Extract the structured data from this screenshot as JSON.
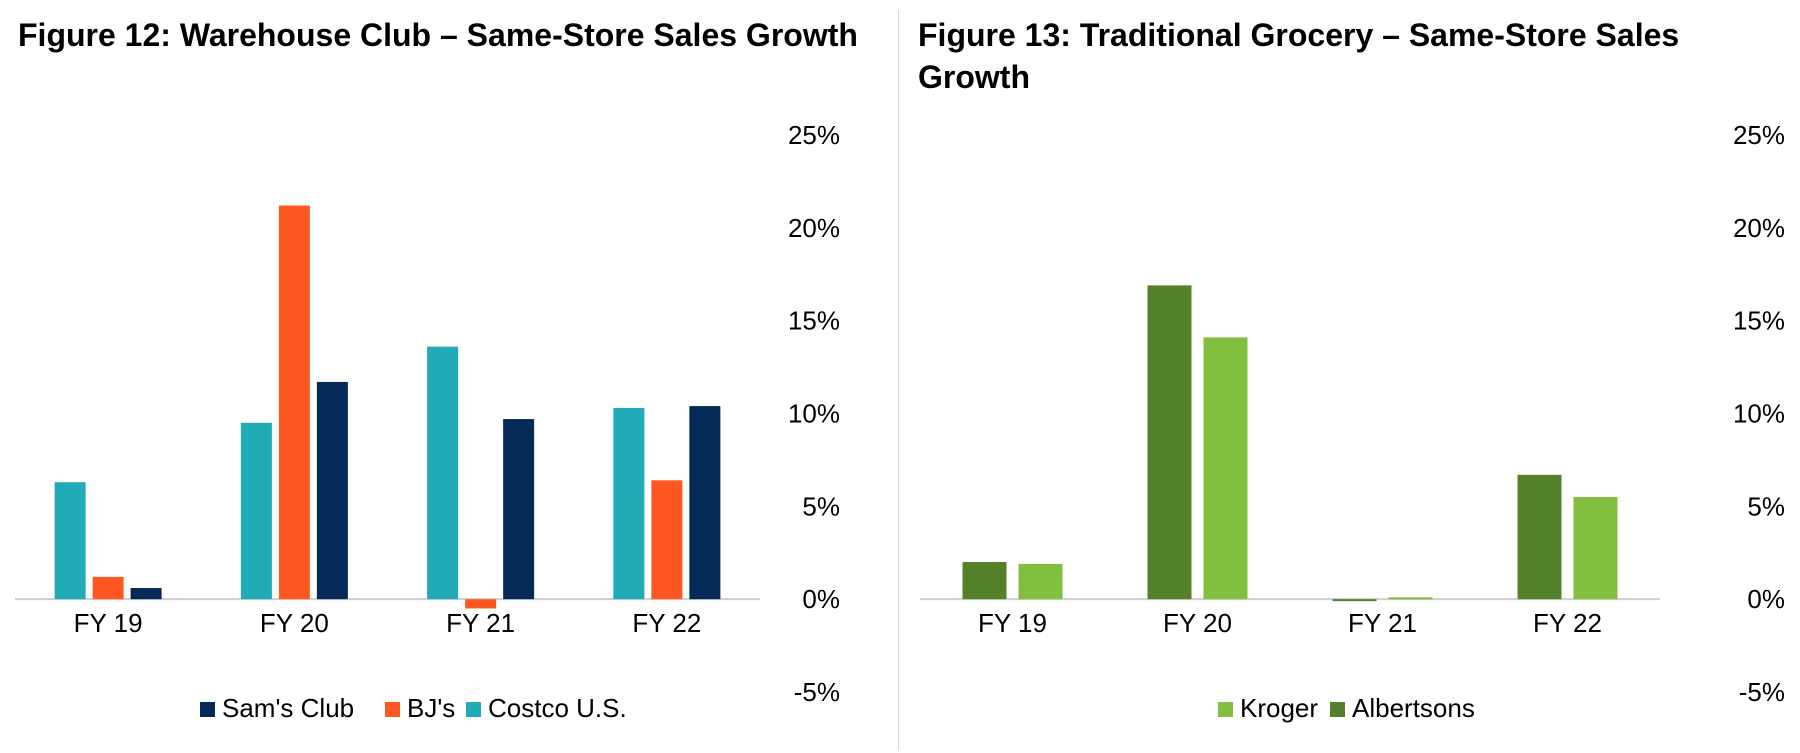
{
  "charts": [
    {
      "id": "fig12",
      "title": "Figure 12: Warehouse Club – Same-Store Sales Growth",
      "chart_data": {
        "type": "bar",
        "title": "Figure 12: Warehouse Club – Same-Store Sales Growth",
        "categories": [
          "FY 19",
          "FY 20",
          "FY 21",
          "FY 22"
        ],
        "series": [
          {
            "name": "Costco U.S.",
            "color": "#21abb7",
            "values": [
              6.3,
              9.5,
              13.6,
              10.3
            ]
          },
          {
            "name": "BJ's",
            "color": "#ff5722",
            "values": [
              1.2,
              21.2,
              -0.5,
              6.4
            ]
          },
          {
            "name": "Sam's Club",
            "color": "#062a58",
            "values": [
              0.6,
              11.7,
              9.7,
              10.4
            ]
          }
        ],
        "legend_order": [
          "Sam's Club",
          "BJ's",
          "Costco U.S."
        ],
        "y_ticks": [
          "25%",
          "20%",
          "15%",
          "10%",
          "5%",
          "0%",
          "-5%"
        ],
        "ylim": [
          -5,
          25
        ],
        "y_axis_side": "right",
        "legend_position": "bottom",
        "grid": false
      }
    },
    {
      "id": "fig13",
      "title": "Figure 13: Traditional Grocery – Same-Store Sales Growth",
      "chart_data": {
        "type": "bar",
        "title": "Figure 13: Traditional Grocery – Same-Store Sales Growth",
        "categories": [
          "FY 19",
          "FY 20",
          "FY 21",
          "FY 22"
        ],
        "series": [
          {
            "name": "Albertsons",
            "color": "#548029",
            "values": [
              2.0,
              16.9,
              -0.1,
              6.7
            ]
          },
          {
            "name": "Kroger",
            "color": "#82bf3f",
            "values": [
              1.9,
              14.1,
              0.1,
              5.5
            ]
          }
        ],
        "legend_order": [
          "Kroger",
          "Albertsons"
        ],
        "y_ticks": [
          "25%",
          "20%",
          "15%",
          "10%",
          "5%",
          "0%",
          "-5%"
        ],
        "ylim": [
          -5,
          25
        ],
        "y_axis_side": "right",
        "legend_position": "bottom",
        "grid": false
      }
    }
  ]
}
